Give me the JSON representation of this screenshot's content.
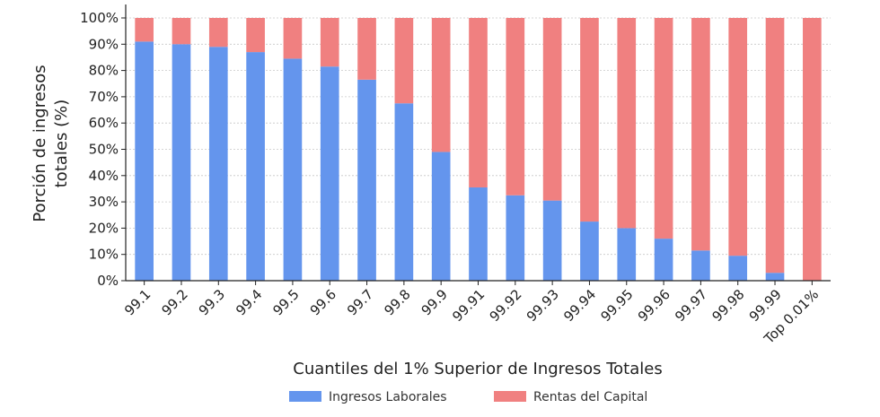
{
  "chart_data": {
    "type": "bar",
    "stacked": true,
    "categories": [
      "99.1",
      "99.2",
      "99.3",
      "99.4",
      "99.5",
      "99.6",
      "99.7",
      "99.8",
      "99.9",
      "99.91",
      "99.92",
      "99.93",
      "99.94",
      "99.95",
      "99.96",
      "99.97",
      "99.98",
      "99.99",
      "Top 0.01%"
    ],
    "series": [
      {
        "name": "Ingresos Laborales",
        "color": "#6495ED",
        "values": [
          91,
          90,
          89,
          87,
          84.5,
          81.5,
          76.5,
          67.5,
          49,
          35.5,
          32.5,
          30.5,
          22.5,
          20,
          16,
          11.5,
          9.5,
          3,
          0
        ]
      },
      {
        "name": "Rentas del Capital",
        "color": "#F08080",
        "values": [
          9,
          10,
          11,
          13,
          15.5,
          18.5,
          23.5,
          32.5,
          51,
          64.5,
          67.5,
          69.5,
          77.5,
          80,
          84,
          88.5,
          90.5,
          97,
          100
        ]
      }
    ],
    "title": "",
    "xlabel": "Cuantiles del 1% Superior de Ingresos Totales",
    "ylabel_lines": [
      "Porción de ingresos",
      "totales (%)"
    ],
    "ylim": [
      0,
      100
    ],
    "yticks": [
      "0%",
      "10%",
      "20%",
      "30%",
      "40%",
      "50%",
      "60%",
      "70%",
      "80%",
      "90%",
      "100%"
    ],
    "grid": true,
    "legend_position": "bottom-center"
  }
}
